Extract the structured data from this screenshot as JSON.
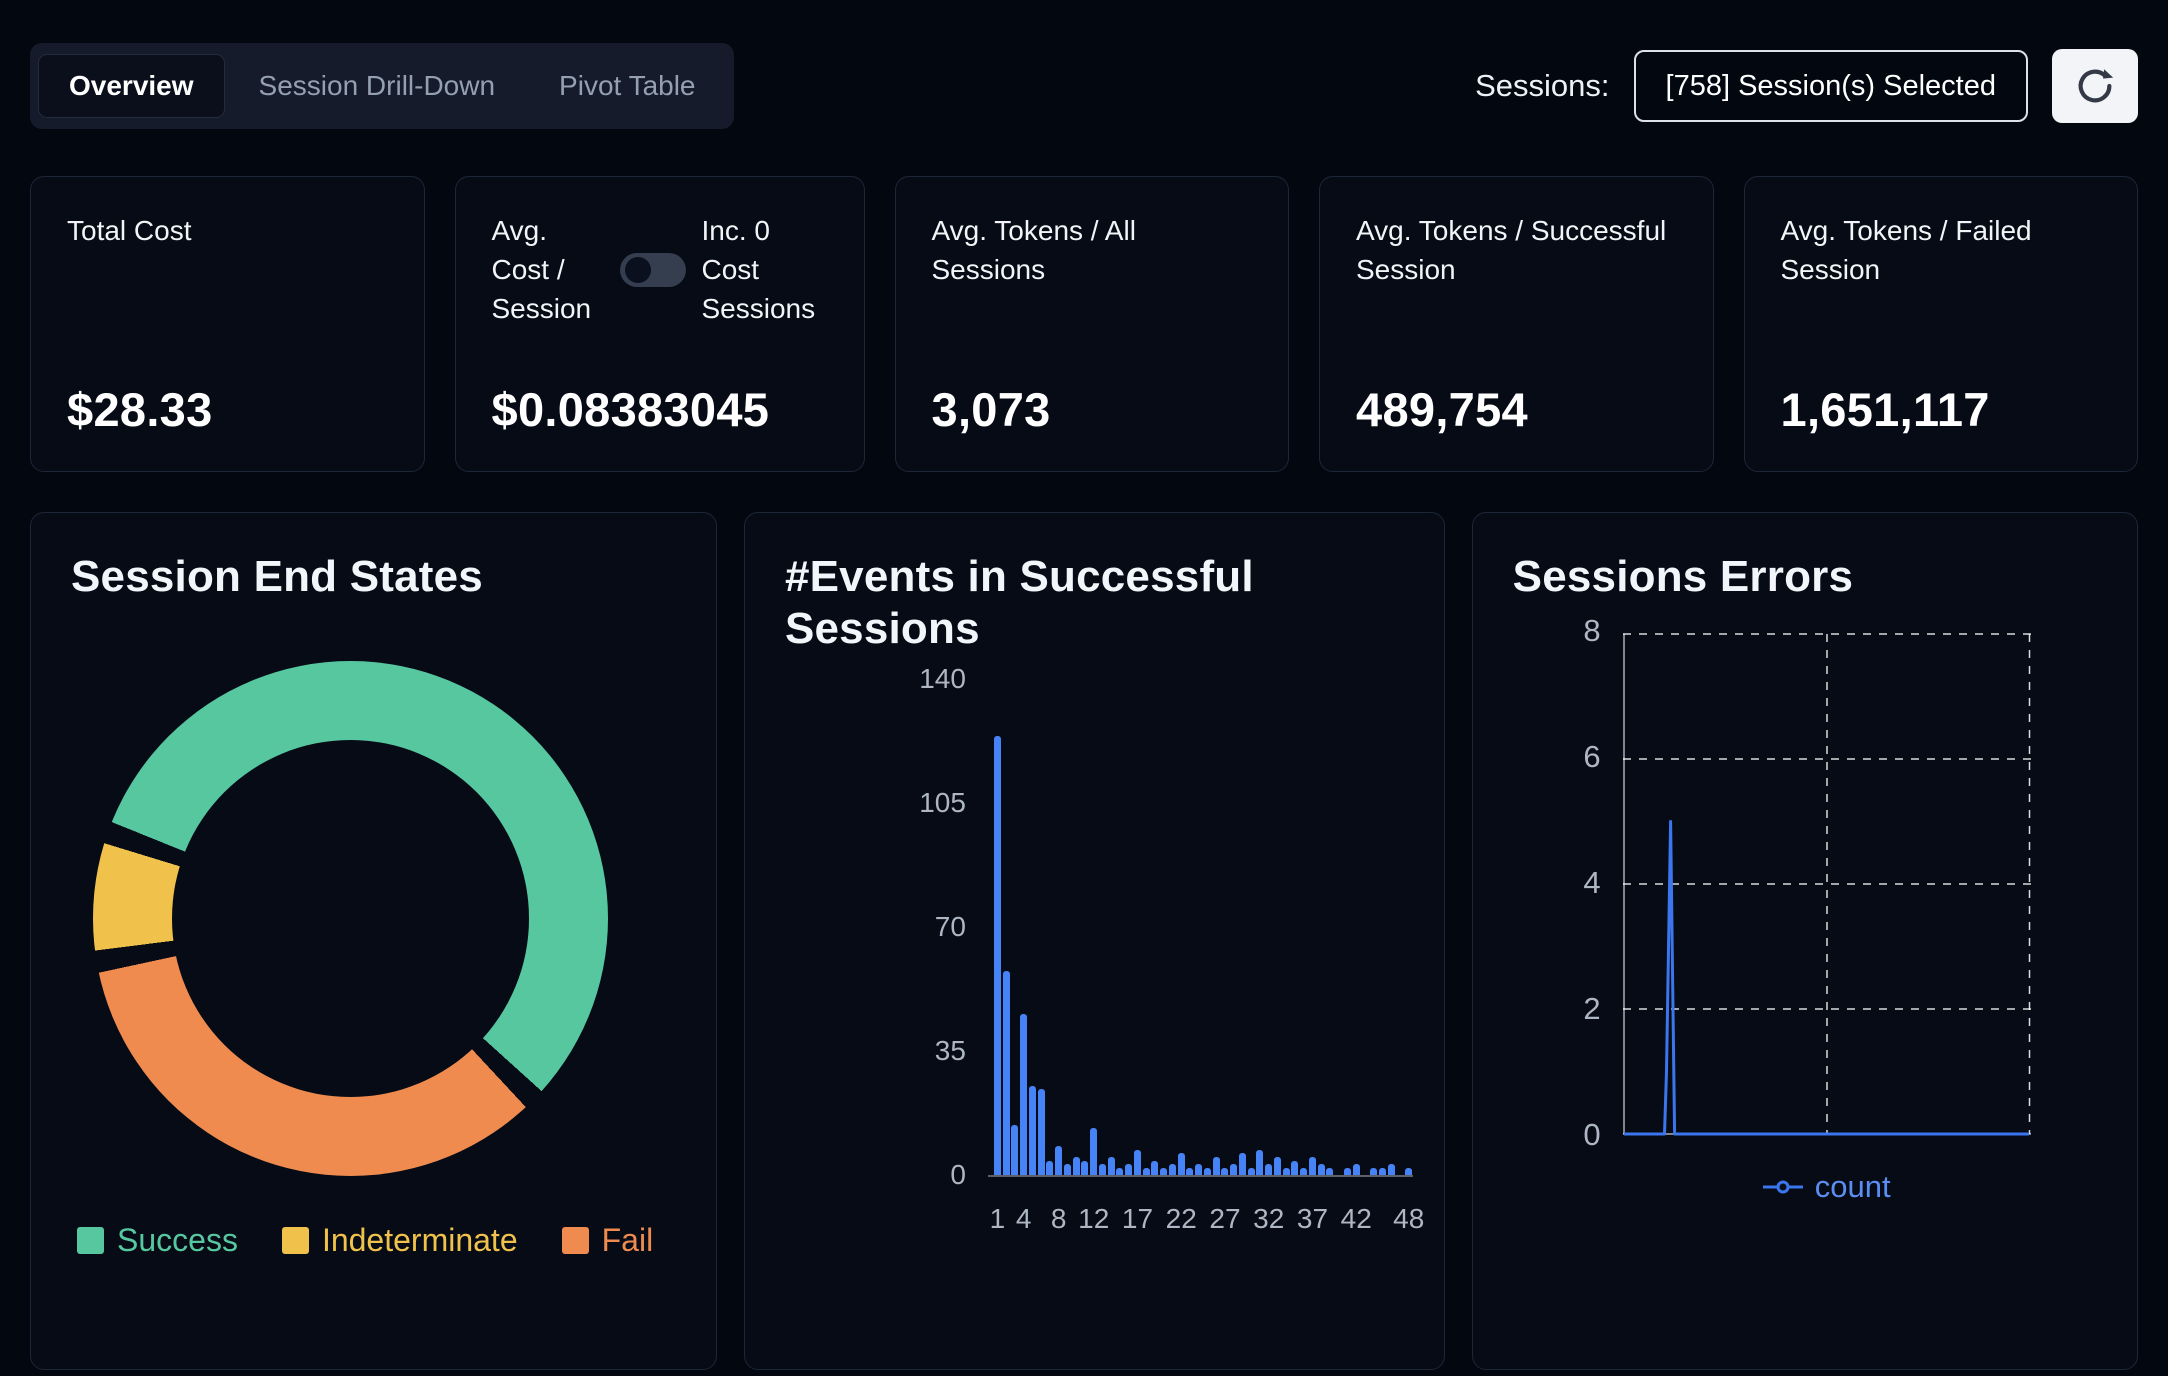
{
  "tabs": [
    {
      "label": "Overview",
      "active": true
    },
    {
      "label": "Session Drill-Down",
      "active": false
    },
    {
      "label": "Pivot Table",
      "active": false
    }
  ],
  "sessions": {
    "label": "Sessions:",
    "selected_text": "[758] Session(s) Selected",
    "refresh_icon": "circular-arrow"
  },
  "stat_cards": [
    {
      "label": "Total Cost",
      "value": "$28.33"
    },
    {
      "label": "Avg. Cost / Session",
      "toggle_label": "Inc. 0 Cost Sessions",
      "toggle_on": false,
      "value": "$0.08383045"
    },
    {
      "label": "Avg. Tokens / All Sessions",
      "value": "3,073"
    },
    {
      "label": "Avg. Tokens / Successful Session",
      "value": "489,754"
    },
    {
      "label": "Avg. Tokens / Failed Session",
      "value": "1,651,117"
    }
  ],
  "chart_data": [
    {
      "type": "pie",
      "title": "Session End States",
      "labels": [
        "Success",
        "Indeterminate",
        "Fail"
      ],
      "values_pct": [
        58,
        7,
        35
      ],
      "colors": [
        "#57c7a0",
        "#f0c24b",
        "#ef8b4f"
      ],
      "render_order": [
        0,
        2,
        1
      ],
      "start_deg": 292,
      "gap_deg": 5,
      "donut": true,
      "legend_position": "bottom"
    },
    {
      "type": "bar",
      "title": "#Events in Successful Sessions",
      "x_start": 1,
      "x_count": 48,
      "values": [
        123,
        57,
        14,
        45,
        25,
        24,
        4,
        8,
        3,
        5,
        4,
        13,
        3,
        5,
        2,
        3,
        7,
        2,
        4,
        2,
        3,
        6,
        2,
        3,
        2,
        5,
        2,
        3,
        6,
        2,
        7,
        3,
        5,
        2,
        4,
        2,
        5,
        3,
        2,
        0,
        2,
        3,
        0,
        2,
        2,
        3,
        0,
        2
      ],
      "x_ticks": [
        1,
        4,
        8,
        12,
        17,
        22,
        27,
        32,
        37,
        42,
        48
      ],
      "y_ticks": [
        0,
        35,
        70,
        105,
        140
      ],
      "ylim": [
        0,
        140
      ],
      "color": "#4583f6",
      "grid": "off"
    },
    {
      "type": "line",
      "title": "Sessions Errors",
      "series": [
        {
          "name": "count",
          "points": [
            [
              0,
              0
            ],
            [
              4.0,
              0
            ],
            [
              4.2,
              1
            ],
            [
              4.6,
              5
            ],
            [
              5.0,
              0
            ],
            [
              40,
              0
            ]
          ]
        }
      ],
      "y_ticks": [
        0,
        2,
        4,
        6,
        8
      ],
      "ylim": [
        0,
        8
      ],
      "xlim": [
        0,
        40
      ],
      "color": "#3b76ee",
      "legend": [
        "count"
      ],
      "legend_position": "bottom",
      "grid": "dashed"
    }
  ]
}
